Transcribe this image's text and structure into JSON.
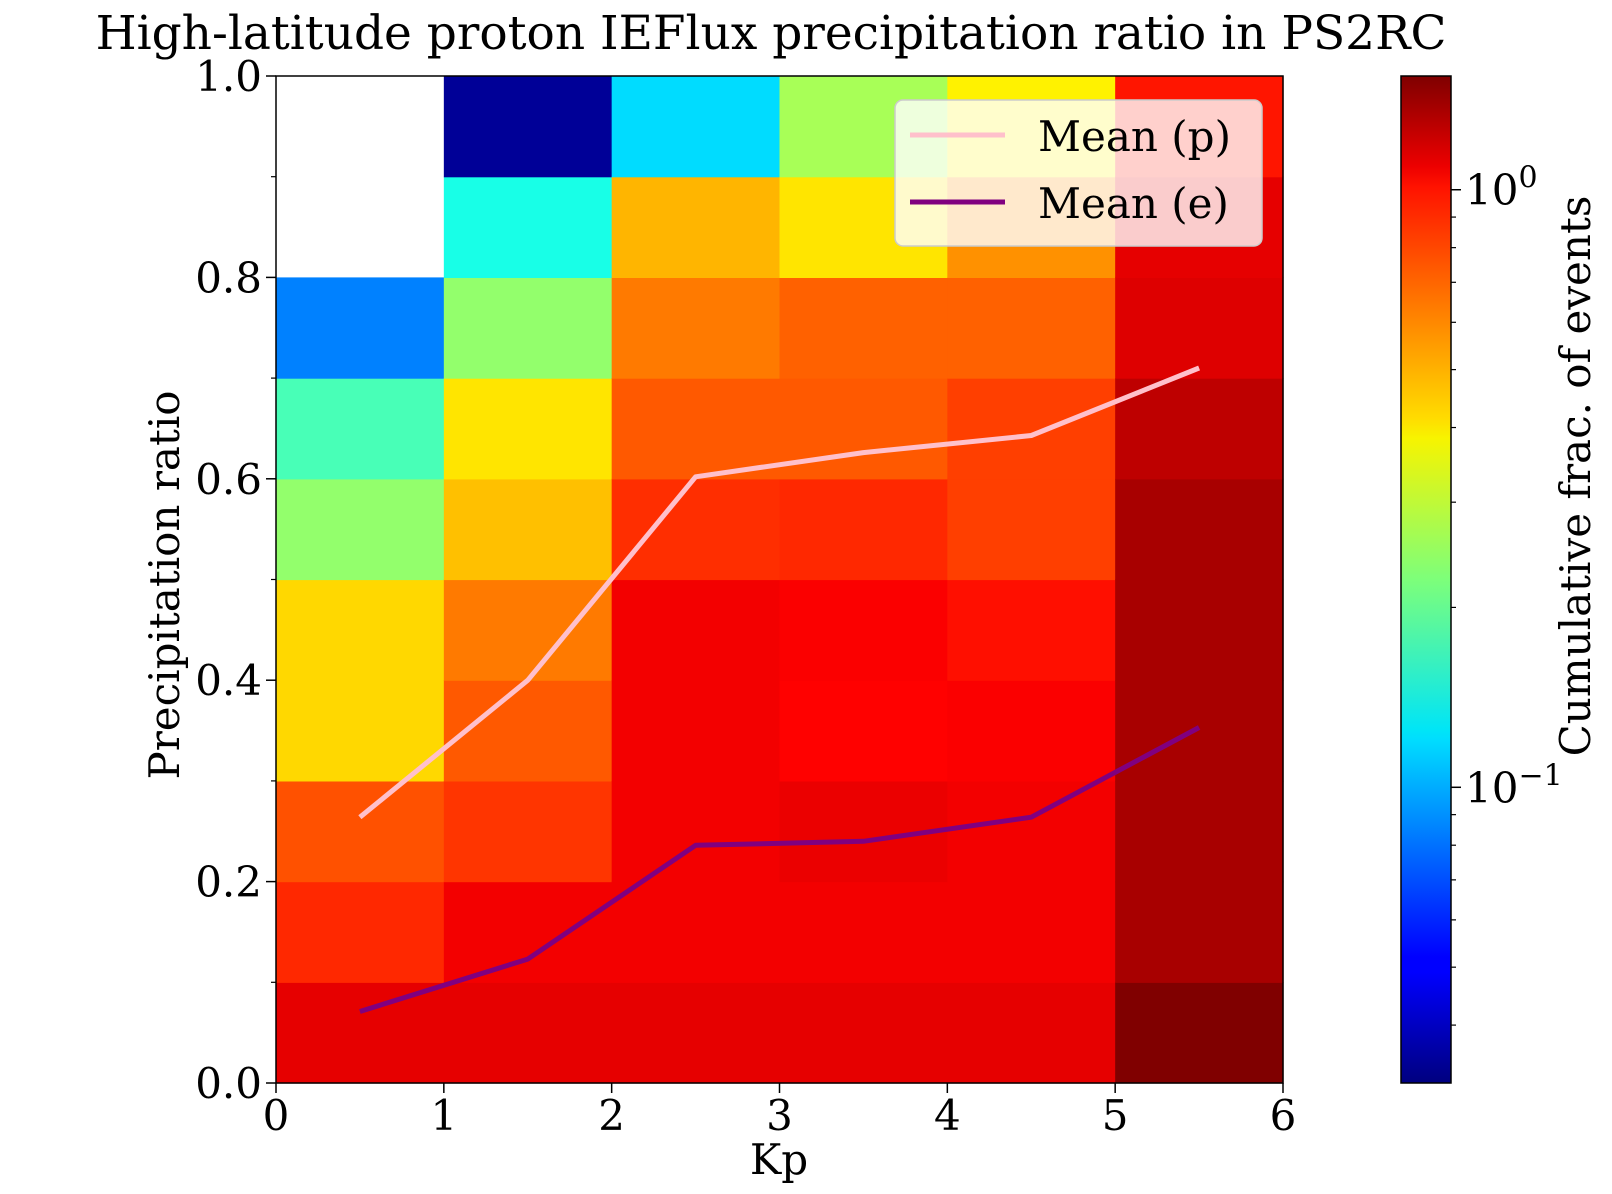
{
  "chart_data": {
    "type": "heatmap",
    "title": "High-latitude proton IEFlux precipitation ratio in PS2RC",
    "xlabel": "Kp",
    "ylabel": "Precipitation ratio",
    "xlim": [
      0,
      6
    ],
    "ylim": [
      0,
      1
    ],
    "x_ticks": [
      "0",
      "1",
      "2",
      "3",
      "4",
      "5",
      "6"
    ],
    "y_ticks": [
      "0.0",
      "0.2",
      "0.4",
      "0.6",
      "0.8",
      "1.0"
    ],
    "x_bins": [
      0,
      1,
      2,
      3,
      4,
      5,
      6
    ],
    "y_bins": [
      0,
      0.1,
      0.2,
      0.3,
      0.4,
      0.5,
      0.6,
      0.7,
      0.8,
      0.9,
      1.0
    ],
    "colormap": "jet",
    "color_scale": "log",
    "color_range": [
      0.032,
      1.55
    ],
    "colorbar_label": "Cumulative frac. of events",
    "colorbar_ticks": [
      {
        "base": "10",
        "exp": "0",
        "value": 1.0
      },
      {
        "base": "10",
        "exp": "−1",
        "value": 0.1
      }
    ],
    "cells_by_column_bottom_to_top": [
      [
        1.05,
        0.82,
        0.7,
        0.42,
        0.42,
        0.24,
        0.18,
        0.085,
        null,
        null
      ],
      [
        1.05,
        1.0,
        0.78,
        0.68,
        0.6,
        0.46,
        0.4,
        0.24,
        0.15,
        0.035
      ],
      [
        1.05,
        1.0,
        1.0,
        1.0,
        1.0,
        0.8,
        0.68,
        0.6,
        0.48,
        0.12
      ],
      [
        1.05,
        1.0,
        1.03,
        0.95,
        0.97,
        0.82,
        0.68,
        0.66,
        0.4,
        0.26
      ],
      [
        1.05,
        1.0,
        1.0,
        0.97,
        0.9,
        0.75,
        0.75,
        0.66,
        0.55,
        0.38
      ],
      [
        1.55,
        1.33,
        1.33,
        1.33,
        1.33,
        1.33,
        1.22,
        1.08,
        1.05,
        0.88
      ]
    ],
    "series": [
      {
        "name": "Mean (p)",
        "color": "#ffc0cb",
        "x": [
          0.5,
          1.5,
          2.5,
          3.5,
          4.5,
          5.5
        ],
        "y": [
          0.264,
          0.4,
          0.602,
          0.626,
          0.643,
          0.71
        ]
      },
      {
        "name": "Mean (e)",
        "color": "#800080",
        "x": [
          0.5,
          1.5,
          2.5,
          3.5,
          4.5,
          5.5
        ],
        "y": [
          0.071,
          0.123,
          0.236,
          0.24,
          0.264,
          0.353
        ]
      }
    ],
    "legend_position": "top-right"
  }
}
